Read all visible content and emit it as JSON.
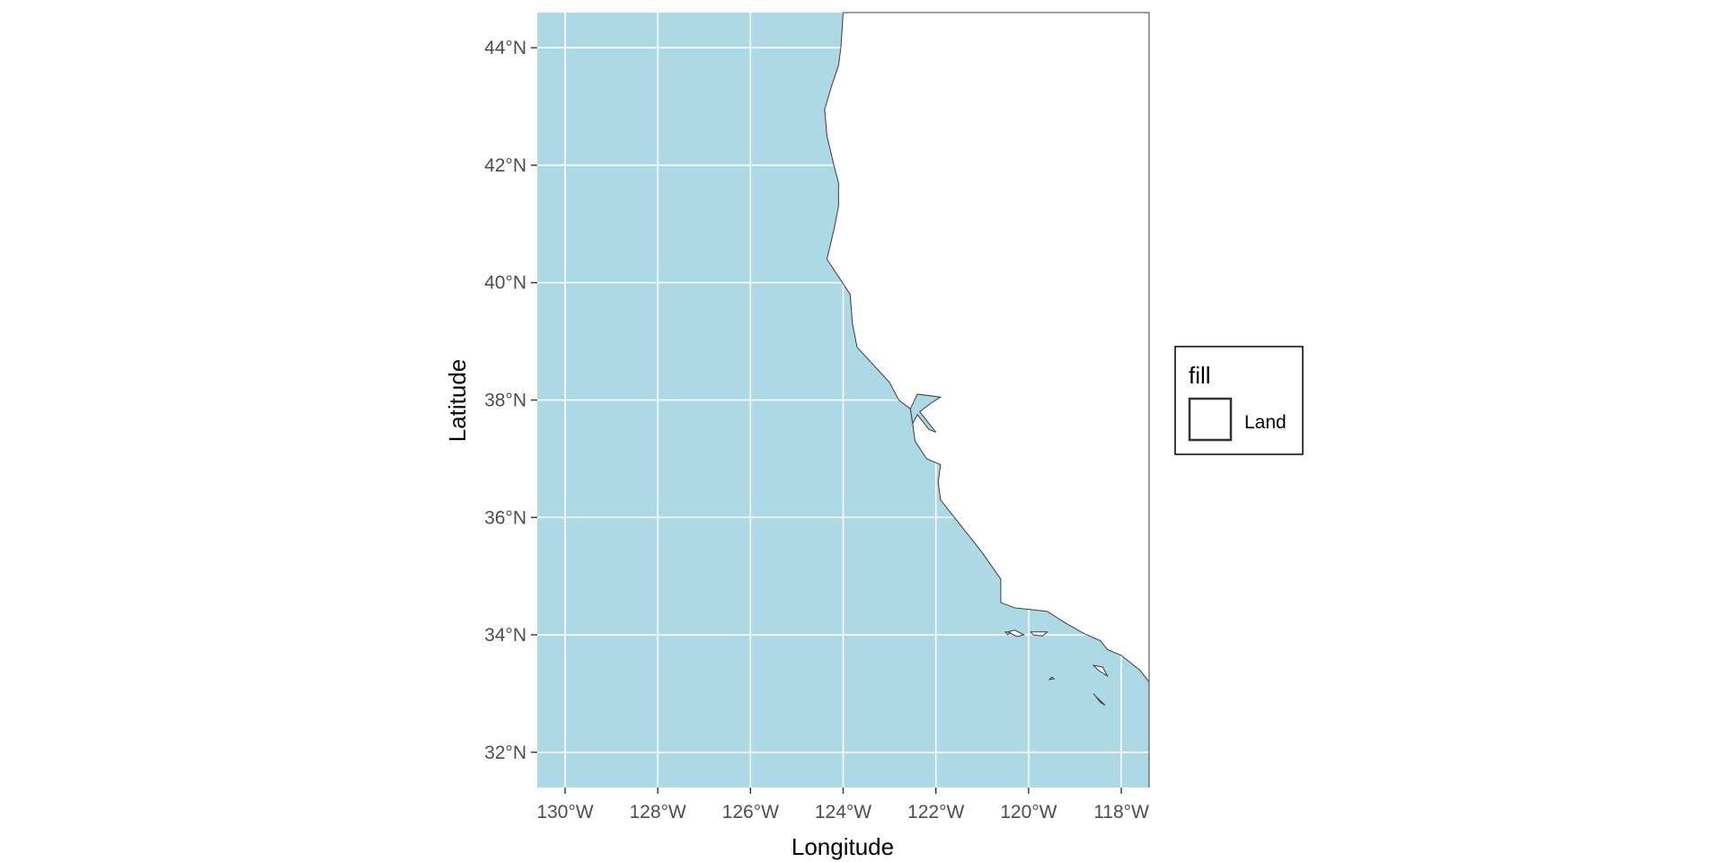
{
  "map": {
    "x_axis_title": "Longitude",
    "y_axis_title": "Latitude",
    "x_ticks": [
      "130°W",
      "128°W",
      "126°W",
      "124°W",
      "122°W",
      "120°W",
      "118°W"
    ],
    "y_ticks": [
      "44°N",
      "42°N",
      "40°N",
      "38°N",
      "36°N",
      "34°N",
      "32°N"
    ],
    "x_tick_values": [
      -130,
      -128,
      -126,
      -124,
      -122,
      -120,
      -118
    ],
    "y_tick_values": [
      44,
      42,
      40,
      38,
      36,
      34,
      32
    ],
    "xlim": [
      -130.6,
      -117.4
    ],
    "ylim": [
      31.4,
      44.6
    ],
    "grid": true,
    "legend": {
      "title": "fill",
      "items": [
        {
          "label": "Land",
          "fill": "#ffffff"
        }
      ],
      "placement": "right"
    },
    "colors": {
      "ocean": "#add8e6",
      "land": "#ffffff",
      "coastline": "#3c3c3c",
      "gridline": "#ffffff",
      "tick_text": "#4d4d4d"
    },
    "coastline": [
      [
        -124.0,
        44.6
      ],
      [
        -124.05,
        44.0
      ],
      [
        -124.1,
        43.7
      ],
      [
        -124.25,
        43.35
      ],
      [
        -124.4,
        42.95
      ],
      [
        -124.35,
        42.5
      ],
      [
        -124.2,
        42.0
      ],
      [
        -124.1,
        41.7
      ],
      [
        -124.1,
        41.3
      ],
      [
        -124.2,
        40.9
      ],
      [
        -124.35,
        40.4
      ],
      [
        -124.1,
        40.1
      ],
      [
        -123.85,
        39.8
      ],
      [
        -123.8,
        39.3
      ],
      [
        -123.7,
        38.9
      ],
      [
        -123.35,
        38.6
      ],
      [
        -123.0,
        38.3
      ],
      [
        -122.8,
        38.0
      ],
      [
        -122.55,
        37.85
      ],
      [
        -122.5,
        37.6
      ],
      [
        -122.45,
        37.3
      ],
      [
        -122.2,
        37.0
      ],
      [
        -121.9,
        36.9
      ],
      [
        -121.95,
        36.6
      ],
      [
        -121.9,
        36.3
      ],
      [
        -121.4,
        35.8
      ],
      [
        -121.0,
        35.4
      ],
      [
        -120.6,
        34.95
      ],
      [
        -120.6,
        34.55
      ],
      [
        -120.3,
        34.46
      ],
      [
        -119.6,
        34.4
      ],
      [
        -119.2,
        34.2
      ],
      [
        -118.8,
        34.02
      ],
      [
        -118.45,
        33.9
      ],
      [
        -118.3,
        33.75
      ],
      [
        -118.0,
        33.65
      ],
      [
        -117.6,
        33.4
      ],
      [
        -117.4,
        33.2
      ],
      [
        -117.4,
        31.4
      ]
    ],
    "bay": [
      [
        -122.55,
        37.85
      ],
      [
        -122.4,
        38.1
      ],
      [
        -121.9,
        38.05
      ],
      [
        -122.1,
        37.95
      ],
      [
        -122.35,
        37.8
      ],
      [
        -122.0,
        37.45
      ],
      [
        -122.15,
        37.5
      ],
      [
        -122.4,
        37.75
      ],
      [
        -122.5,
        37.6
      ]
    ],
    "islands": [
      [
        [
          -120.45,
          34.05
        ],
        [
          -120.3,
          34.08
        ],
        [
          -120.1,
          34.0
        ],
        [
          -120.25,
          33.97
        ]
      ],
      [
        [
          -119.95,
          34.05
        ],
        [
          -119.6,
          34.05
        ],
        [
          -119.7,
          33.98
        ],
        [
          -119.9,
          34.0
        ]
      ],
      [
        [
          -120.5,
          34.05
        ],
        [
          -120.4,
          34.04
        ],
        [
          -120.45,
          34.0
        ]
      ],
      [
        [
          -119.5,
          33.28
        ],
        [
          -119.45,
          33.25
        ],
        [
          -119.55,
          33.24
        ]
      ],
      [
        [
          -118.6,
          33.48
        ],
        [
          -118.4,
          33.45
        ],
        [
          -118.3,
          33.3
        ],
        [
          -118.5,
          33.4
        ]
      ],
      [
        [
          -118.6,
          33.0
        ],
        [
          -118.45,
          32.85
        ],
        [
          -118.35,
          32.8
        ],
        [
          -118.55,
          32.95
        ]
      ]
    ]
  }
}
